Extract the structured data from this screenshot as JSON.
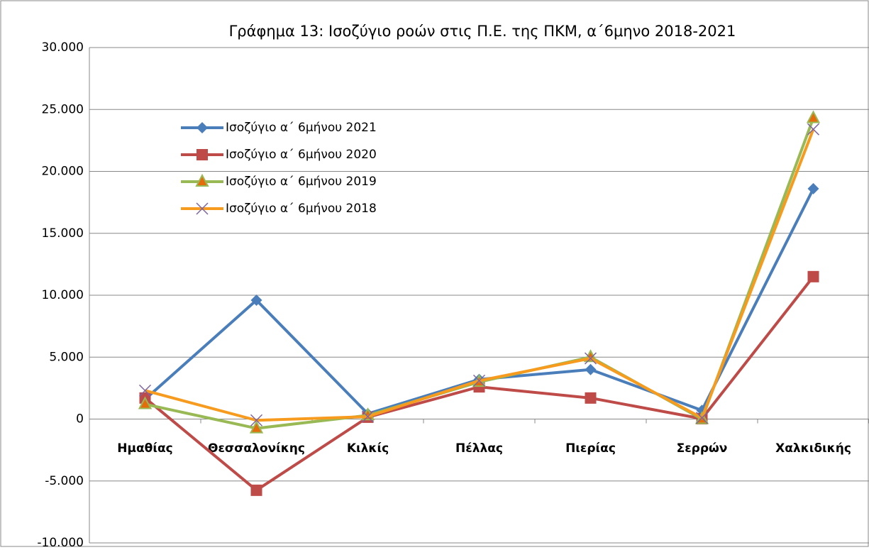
{
  "chart_data": {
    "type": "line",
    "title": "Γράφημα 13: Ισοζύγιο ροών στις Π.Ε. της ΠΚΜ, α΄6μηνο 2018-2021",
    "categories": [
      "Ημαθίας",
      "Θεσσαλονίκης",
      "Κιλκίς",
      "Πέλλας",
      "Πιερίας",
      "Σερρών",
      "Χαλκιδικής"
    ],
    "series": [
      {
        "name": "Ισοζύγιο α΄ 6μήνου 2021",
        "color": "#4a7ebb",
        "marker": "diamond",
        "values": [
          1600,
          9600,
          430,
          3200,
          4000,
          700,
          18600
        ]
      },
      {
        "name": "Ισοζύγιο α΄ 6μήνου 2020",
        "color": "#be4b48",
        "marker": "square",
        "values": [
          1700,
          -5750,
          150,
          2600,
          1700,
          30,
          11500
        ]
      },
      {
        "name": "Ισοζύγιο α΄ 6μήνου 2019",
        "color": "#98b954",
        "marker": "triangle",
        "values": [
          1200,
          -750,
          300,
          3000,
          5000,
          0,
          24300
        ]
      },
      {
        "name": "Ισοζύγιο α΄ 6μήνου 2018",
        "color": "#f79b1e",
        "marker": "x",
        "values": [
          2300,
          -100,
          200,
          3100,
          4900,
          100,
          23400
        ]
      }
    ],
    "ylim": [
      -10000,
      30000
    ],
    "yticks": [
      {
        "value": -10000,
        "label": "-10.000"
      },
      {
        "value": -5000,
        "label": "-5.000"
      },
      0,
      {
        "value": 5000,
        "label": "5.000"
      },
      {
        "value": 10000,
        "label": "10.000"
      },
      {
        "value": 15000,
        "label": "15.000"
      },
      {
        "value": 20000,
        "label": "20.000"
      },
      {
        "value": 25000,
        "label": "25.000"
      },
      {
        "value": 30000,
        "label": "30.000"
      }
    ],
    "grid": true
  }
}
